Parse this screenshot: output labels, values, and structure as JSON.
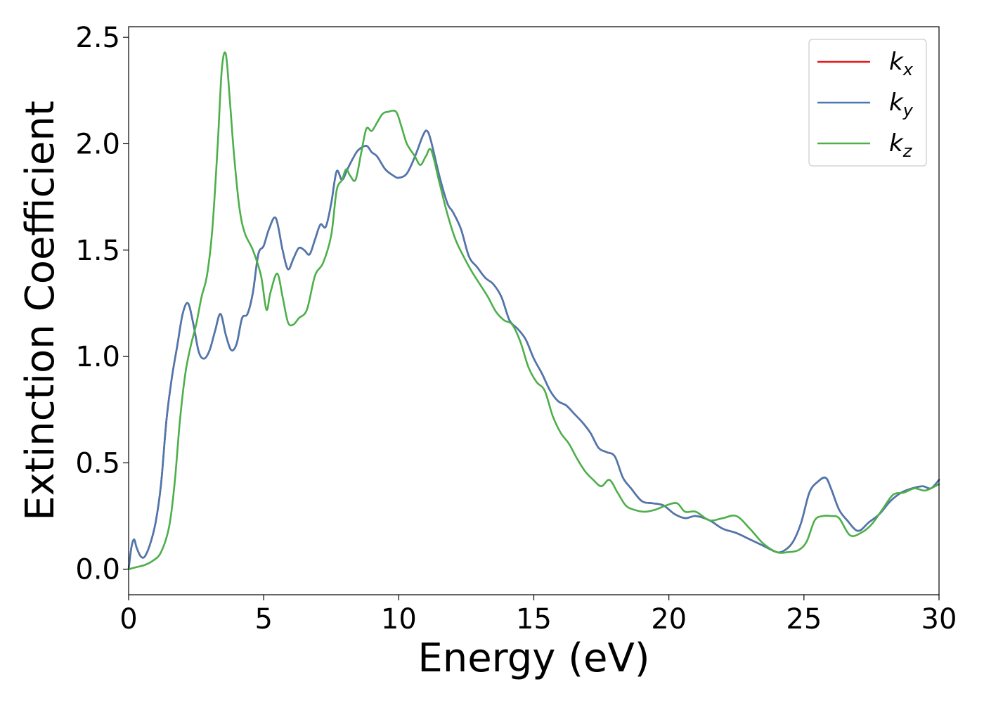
{
  "chart_data": {
    "type": "line",
    "xlabel": "Energy (eV)",
    "ylabel": "Extinction Coefficient",
    "xlim": [
      0,
      30
    ],
    "ylim": [
      -0.12,
      2.55
    ],
    "x_ticks": [
      0,
      5,
      10,
      15,
      20,
      25,
      30
    ],
    "y_ticks": [
      0.0,
      0.5,
      1.0,
      1.5,
      2.0,
      2.5
    ],
    "x_tick_labels": [
      "0",
      "5",
      "10",
      "15",
      "20",
      "25",
      "30"
    ],
    "y_tick_labels": [
      "0.0",
      "0.5",
      "1.0",
      "1.5",
      "2.0",
      "2.5"
    ],
    "grid": false,
    "legend_position": "top-right",
    "series": [
      {
        "name": "k_x",
        "label_base": "k",
        "label_sub": "x",
        "color": "#e41a1c",
        "x": [
          0,
          0.1,
          0.2,
          0.3,
          0.45,
          0.6,
          0.8,
          1.0,
          1.2,
          1.4,
          1.6,
          1.8,
          2.0,
          2.2,
          2.4,
          2.6,
          2.8,
          3.0,
          3.2,
          3.4,
          3.6,
          3.8,
          4.0,
          4.2,
          4.4,
          4.6,
          4.8,
          5.0,
          5.2,
          5.45,
          5.7,
          5.9,
          6.1,
          6.3,
          6.5,
          6.7,
          6.9,
          7.1,
          7.3,
          7.5,
          7.7,
          7.9,
          8.1,
          8.3,
          8.5,
          8.8,
          9.0,
          9.2,
          9.5,
          9.8,
          10.0,
          10.3,
          10.6,
          10.9,
          11.05,
          11.2,
          11.5,
          11.8,
          12.0,
          12.3,
          12.6,
          12.9,
          13.2,
          13.5,
          13.8,
          14.1,
          14.4,
          14.7,
          15.0,
          15.3,
          15.6,
          15.9,
          16.2,
          16.5,
          16.8,
          17.1,
          17.4,
          17.7,
          18.0,
          18.3,
          18.6,
          19.0,
          19.4,
          19.8,
          20.2,
          20.6,
          21.0,
          21.5,
          22.0,
          22.5,
          23.0,
          23.5,
          24.0,
          24.3,
          24.6,
          24.9,
          25.2,
          25.5,
          25.8,
          26.0,
          26.3,
          26.6,
          27.0,
          27.4,
          27.8,
          28.2,
          28.6,
          29.0,
          29.4,
          29.7,
          30.0
        ],
        "y": [
          0.0,
          0.1,
          0.14,
          0.1,
          0.06,
          0.06,
          0.12,
          0.22,
          0.4,
          0.7,
          0.9,
          1.05,
          1.2,
          1.25,
          1.15,
          1.02,
          0.99,
          1.03,
          1.12,
          1.2,
          1.1,
          1.03,
          1.06,
          1.18,
          1.2,
          1.3,
          1.48,
          1.52,
          1.6,
          1.65,
          1.5,
          1.41,
          1.46,
          1.51,
          1.5,
          1.48,
          1.55,
          1.62,
          1.61,
          1.72,
          1.87,
          1.83,
          1.88,
          1.93,
          1.97,
          1.99,
          1.96,
          1.94,
          1.88,
          1.85,
          1.84,
          1.86,
          1.94,
          2.04,
          2.06,
          2.01,
          1.85,
          1.72,
          1.68,
          1.6,
          1.47,
          1.42,
          1.37,
          1.34,
          1.28,
          1.17,
          1.13,
          1.08,
          0.99,
          0.92,
          0.84,
          0.79,
          0.77,
          0.73,
          0.69,
          0.64,
          0.57,
          0.55,
          0.53,
          0.43,
          0.38,
          0.32,
          0.31,
          0.3,
          0.26,
          0.24,
          0.25,
          0.23,
          0.19,
          0.17,
          0.14,
          0.11,
          0.08,
          0.09,
          0.13,
          0.22,
          0.36,
          0.41,
          0.43,
          0.38,
          0.28,
          0.23,
          0.18,
          0.22,
          0.26,
          0.32,
          0.36,
          0.38,
          0.39,
          0.38,
          0.42
        ]
      },
      {
        "name": "k_y",
        "label_base": "k",
        "label_sub": "y",
        "color": "#4a79b0",
        "x": [
          0,
          0.1,
          0.2,
          0.3,
          0.45,
          0.6,
          0.8,
          1.0,
          1.2,
          1.4,
          1.6,
          1.8,
          2.0,
          2.2,
          2.4,
          2.6,
          2.8,
          3.0,
          3.2,
          3.4,
          3.6,
          3.8,
          4.0,
          4.2,
          4.4,
          4.6,
          4.8,
          5.0,
          5.2,
          5.45,
          5.7,
          5.9,
          6.1,
          6.3,
          6.5,
          6.7,
          6.9,
          7.1,
          7.3,
          7.5,
          7.7,
          7.9,
          8.1,
          8.3,
          8.5,
          8.8,
          9.0,
          9.2,
          9.5,
          9.8,
          10.0,
          10.3,
          10.6,
          10.9,
          11.05,
          11.2,
          11.5,
          11.8,
          12.0,
          12.3,
          12.6,
          12.9,
          13.2,
          13.5,
          13.8,
          14.1,
          14.4,
          14.7,
          15.0,
          15.3,
          15.6,
          15.9,
          16.2,
          16.5,
          16.8,
          17.1,
          17.4,
          17.7,
          18.0,
          18.3,
          18.6,
          19.0,
          19.4,
          19.8,
          20.2,
          20.6,
          21.0,
          21.5,
          22.0,
          22.5,
          23.0,
          23.5,
          24.0,
          24.3,
          24.6,
          24.9,
          25.2,
          25.5,
          25.8,
          26.0,
          26.3,
          26.6,
          27.0,
          27.4,
          27.8,
          28.2,
          28.6,
          29.0,
          29.4,
          29.7,
          30.0
        ],
        "y": [
          0.0,
          0.1,
          0.14,
          0.1,
          0.06,
          0.06,
          0.12,
          0.22,
          0.4,
          0.7,
          0.9,
          1.05,
          1.2,
          1.25,
          1.15,
          1.02,
          0.99,
          1.03,
          1.12,
          1.2,
          1.1,
          1.03,
          1.06,
          1.18,
          1.2,
          1.3,
          1.48,
          1.52,
          1.6,
          1.65,
          1.5,
          1.41,
          1.46,
          1.51,
          1.5,
          1.48,
          1.55,
          1.62,
          1.61,
          1.72,
          1.87,
          1.83,
          1.88,
          1.93,
          1.97,
          1.99,
          1.96,
          1.94,
          1.88,
          1.85,
          1.84,
          1.86,
          1.94,
          2.04,
          2.06,
          2.01,
          1.85,
          1.72,
          1.68,
          1.6,
          1.47,
          1.42,
          1.37,
          1.34,
          1.28,
          1.17,
          1.13,
          1.08,
          0.99,
          0.92,
          0.84,
          0.79,
          0.77,
          0.73,
          0.69,
          0.64,
          0.57,
          0.55,
          0.53,
          0.43,
          0.38,
          0.32,
          0.31,
          0.3,
          0.26,
          0.24,
          0.25,
          0.23,
          0.19,
          0.17,
          0.14,
          0.11,
          0.08,
          0.09,
          0.13,
          0.22,
          0.36,
          0.41,
          0.43,
          0.38,
          0.28,
          0.23,
          0.18,
          0.22,
          0.26,
          0.32,
          0.36,
          0.38,
          0.39,
          0.38,
          0.42
        ]
      },
      {
        "name": "k_z",
        "label_base": "k",
        "label_sub": "z",
        "color": "#4daf4a",
        "x": [
          0,
          0.3,
          0.6,
          0.9,
          1.2,
          1.5,
          1.7,
          1.9,
          2.1,
          2.3,
          2.5,
          2.7,
          2.9,
          3.1,
          3.3,
          3.45,
          3.6,
          3.75,
          3.9,
          4.1,
          4.3,
          4.6,
          4.9,
          5.1,
          5.25,
          5.5,
          5.7,
          5.9,
          6.1,
          6.3,
          6.6,
          6.9,
          7.2,
          7.5,
          7.7,
          7.9,
          8.05,
          8.2,
          8.4,
          8.6,
          8.8,
          9.0,
          9.2,
          9.4,
          9.6,
          9.9,
          10.1,
          10.3,
          10.6,
          10.8,
          11.0,
          11.2,
          11.5,
          11.8,
          12.1,
          12.4,
          12.7,
          13.0,
          13.3,
          13.6,
          13.9,
          14.2,
          14.5,
          14.8,
          15.1,
          15.4,
          15.7,
          16.0,
          16.3,
          16.6,
          16.9,
          17.2,
          17.5,
          17.8,
          18.1,
          18.4,
          18.7,
          19.1,
          19.5,
          19.9,
          20.3,
          20.6,
          21.0,
          21.5,
          22.0,
          22.5,
          23.0,
          23.5,
          24.0,
          24.4,
          24.8,
          25.1,
          25.4,
          25.7,
          26.0,
          26.3,
          26.7,
          27.1,
          27.5,
          27.9,
          28.3,
          28.7,
          29.1,
          29.5,
          30.0
        ],
        "y": [
          0.0,
          0.01,
          0.02,
          0.04,
          0.08,
          0.2,
          0.4,
          0.7,
          0.92,
          1.05,
          1.15,
          1.28,
          1.38,
          1.6,
          2.0,
          2.35,
          2.42,
          2.2,
          1.95,
          1.7,
          1.58,
          1.5,
          1.38,
          1.22,
          1.3,
          1.39,
          1.28,
          1.16,
          1.15,
          1.18,
          1.22,
          1.38,
          1.44,
          1.57,
          1.78,
          1.83,
          1.88,
          1.85,
          1.83,
          1.95,
          2.07,
          2.06,
          2.1,
          2.14,
          2.15,
          2.15,
          2.08,
          2.0,
          1.94,
          1.9,
          1.94,
          1.97,
          1.82,
          1.67,
          1.55,
          1.47,
          1.4,
          1.34,
          1.28,
          1.21,
          1.17,
          1.15,
          1.07,
          0.95,
          0.88,
          0.84,
          0.72,
          0.64,
          0.59,
          0.52,
          0.46,
          0.42,
          0.39,
          0.42,
          0.36,
          0.3,
          0.28,
          0.27,
          0.28,
          0.3,
          0.31,
          0.27,
          0.27,
          0.23,
          0.24,
          0.25,
          0.19,
          0.12,
          0.08,
          0.08,
          0.09,
          0.13,
          0.23,
          0.25,
          0.25,
          0.24,
          0.16,
          0.17,
          0.21,
          0.28,
          0.35,
          0.36,
          0.38,
          0.37,
          0.4
        ]
      }
    ]
  }
}
